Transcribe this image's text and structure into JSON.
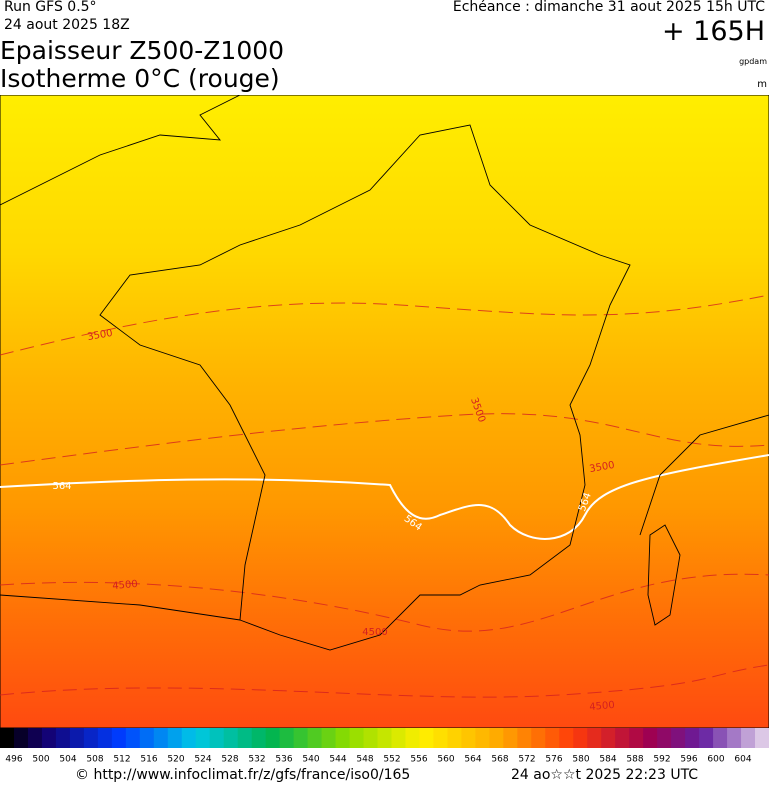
{
  "header": {
    "run": "Run GFS 0.5°",
    "date": "24 aout 2025 18Z",
    "echeance": "Echéance : dimanche 31 aout 2025 15h UTC",
    "lead": "+ 165H",
    "title_line1": "Epaisseur Z500-Z1000",
    "title_line2": "Isotherme 0°C (rouge)",
    "unit1": "gpdam",
    "unit2": "m"
  },
  "map": {
    "contour_labels": [
      "3500",
      "3500",
      "3500",
      "4500",
      "4500",
      "4500",
      "564",
      "564",
      "564"
    ]
  },
  "legend": {
    "labels": [
      496,
      500,
      504,
      508,
      512,
      516,
      520,
      524,
      528,
      532,
      536,
      540,
      544,
      548,
      552,
      556,
      560,
      564,
      568,
      572,
      576,
      580,
      584,
      588,
      592,
      596,
      600,
      604
    ]
  },
  "footer": {
    "url": "© http://www.infoclimat.fr/z/gfs/france/iso0/165",
    "time": "24 ao☆☆t 2025 22:23 UTC"
  }
}
